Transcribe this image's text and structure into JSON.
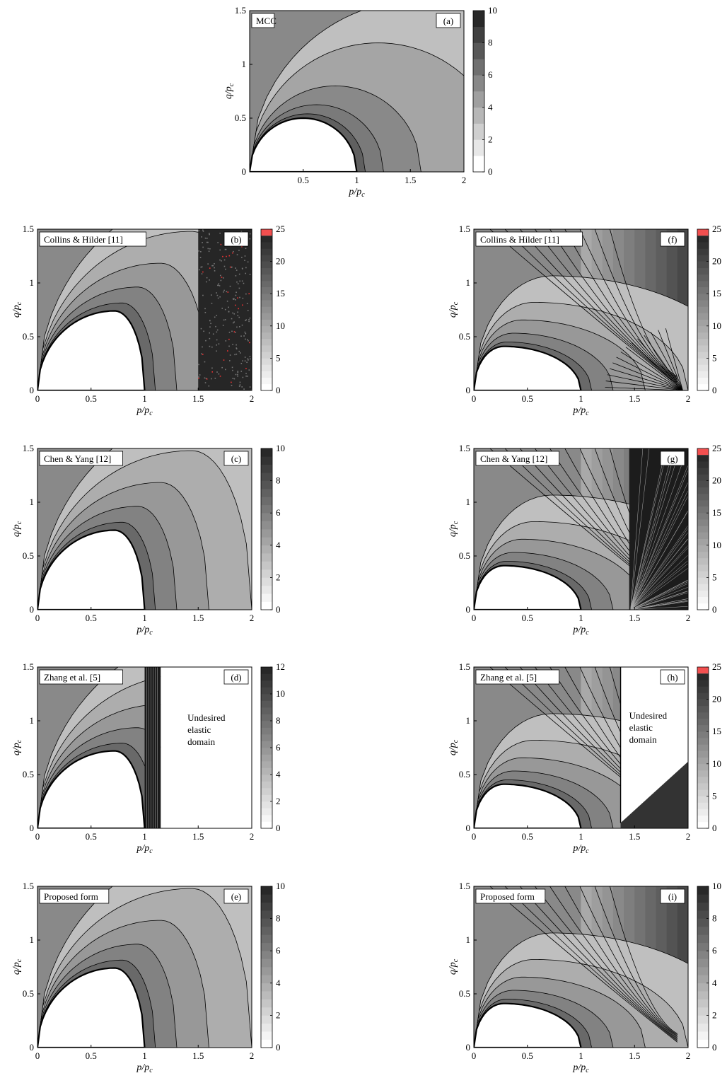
{
  "chart_data": [
    {
      "type": "contour",
      "panel": "(a)",
      "label": "MCC",
      "xlabel": "p/pc",
      "ylabel": "q/pc",
      "xlim": [
        0,
        2
      ],
      "ylim": [
        0,
        1.5
      ],
      "xticks": [
        "0.5",
        "1",
        "1.5",
        "2"
      ],
      "yticks": [
        "0",
        "0.5",
        "1",
        "1.5"
      ],
      "colorbar": {
        "min": 0,
        "max": 10,
        "ticks": [
          "0",
          "2",
          "4",
          "6",
          "8",
          "10"
        ],
        "levels": 10,
        "overflow": false
      },
      "elastic_domain": {
        "center": 0.5,
        "half_width": 0.5,
        "peak": 0.5
      },
      "annotation": ""
    },
    {
      "type": "contour",
      "panel": "(b)",
      "label": "Collins & Hilder [11]",
      "xlabel": "p/pc",
      "ylabel": "q/pc",
      "xlim": [
        0,
        2
      ],
      "ylim": [
        0,
        1.5
      ],
      "xticks": [
        "0",
        "0.5",
        "1",
        "1.5",
        "2"
      ],
      "yticks": [
        "0",
        "0.5",
        "1",
        "1.5"
      ],
      "colorbar": {
        "min": 0,
        "max": 25,
        "ticks": [
          "0",
          "5",
          "10",
          "15",
          "20",
          "25"
        ],
        "levels": 24,
        "overflow": true
      },
      "elastic_domain": {
        "center": 0.5,
        "half_width": 0.5,
        "peak": 0.74
      },
      "annotation": ""
    },
    {
      "type": "contour",
      "panel": "(c)",
      "label": "Chen & Yang [12]",
      "xlabel": "p/pc",
      "ylabel": "q/pc",
      "xlim": [
        0,
        2
      ],
      "ylim": [
        0,
        1.5
      ],
      "xticks": [
        "0",
        "0.5",
        "1",
        "1.5",
        "2"
      ],
      "yticks": [
        "0",
        "0.5",
        "1",
        "1.5"
      ],
      "colorbar": {
        "min": 0,
        "max": 10,
        "ticks": [
          "0",
          "2",
          "4",
          "6",
          "8",
          "10"
        ],
        "levels": 20,
        "overflow": false
      },
      "elastic_domain": {
        "center": 0.5,
        "half_width": 0.5,
        "peak": 0.74
      },
      "annotation": ""
    },
    {
      "type": "contour",
      "panel": "(d)",
      "label": "Zhang et al. [5]",
      "xlabel": "p/pc",
      "ylabel": "q/pc",
      "xlim": [
        0,
        2
      ],
      "ylim": [
        0,
        1.5
      ],
      "xticks": [
        "0",
        "0.5",
        "1",
        "1.5",
        "2"
      ],
      "yticks": [
        "0",
        "0.5",
        "1",
        "1.5"
      ],
      "colorbar": {
        "min": 0,
        "max": 12,
        "ticks": [
          "0",
          "2",
          "4",
          "6",
          "8",
          "10",
          "12"
        ],
        "levels": 24,
        "overflow": false
      },
      "elastic_domain": {
        "center": 0.5,
        "half_width": 0.5,
        "peak": 0.72
      },
      "annotation": "Undesired\nelastic\ndomain"
    },
    {
      "type": "contour",
      "panel": "(e)",
      "label": "Proposed form",
      "xlabel": "p/pc",
      "ylabel": "q/pc",
      "xlim": [
        0,
        2
      ],
      "ylim": [
        0,
        1.5
      ],
      "xticks": [
        "0",
        "0.5",
        "1",
        "1.5",
        "2"
      ],
      "yticks": [
        "0",
        "0.5",
        "1",
        "1.5"
      ],
      "colorbar": {
        "min": 0,
        "max": 10,
        "ticks": [
          "0",
          "2",
          "4",
          "6",
          "8",
          "10"
        ],
        "levels": 20,
        "overflow": false
      },
      "elastic_domain": {
        "center": 0.5,
        "half_width": 0.5,
        "peak": 0.74
      },
      "annotation": ""
    },
    {
      "type": "contour",
      "panel": "(f)",
      "label": "Collins & Hilder [11]",
      "xlabel": "p/pc",
      "ylabel": "q/pc",
      "xlim": [
        0,
        2
      ],
      "ylim": [
        0,
        1.5
      ],
      "xticks": [
        "0",
        "0.5",
        "1",
        "1.5",
        "2"
      ],
      "yticks": [
        "0",
        "0.5",
        "1",
        "1.5"
      ],
      "colorbar": {
        "min": 0,
        "max": 25,
        "ticks": [
          "0",
          "5",
          "10",
          "15",
          "20",
          "25"
        ],
        "levels": 24,
        "overflow": true
      },
      "elastic_domain": {
        "center": 0.5,
        "half_width": 0.5,
        "peak": 0.41
      },
      "annotation": ""
    },
    {
      "type": "contour",
      "panel": "(g)",
      "label": "Chen & Yang [12]",
      "xlabel": "p/pc",
      "ylabel": "q/pc",
      "xlim": [
        0,
        2
      ],
      "ylim": [
        0,
        1.5
      ],
      "xticks": [
        "0",
        "0.5",
        "1",
        "1.5",
        "2"
      ],
      "yticks": [
        "0",
        "0.5",
        "1",
        "1.5"
      ],
      "colorbar": {
        "min": 0,
        "max": 25,
        "ticks": [
          "0",
          "5",
          "10",
          "15",
          "20",
          "25"
        ],
        "levels": 24,
        "overflow": true
      },
      "elastic_domain": {
        "center": 0.5,
        "half_width": 0.5,
        "peak": 0.41
      },
      "annotation": ""
    },
    {
      "type": "contour",
      "panel": "(h)",
      "label": "Zhang et al. [5]",
      "xlabel": "p/pc",
      "ylabel": "q/pc",
      "xlim": [
        0,
        2
      ],
      "ylim": [
        0,
        1.5
      ],
      "xticks": [
        "0",
        "0.5",
        "1",
        "1.5",
        "2"
      ],
      "yticks": [
        "0",
        "0.5",
        "1",
        "1.5"
      ],
      "colorbar": {
        "min": 0,
        "max": 25,
        "ticks": [
          "0",
          "5",
          "10",
          "15",
          "20",
          "25"
        ],
        "levels": 24,
        "overflow": true
      },
      "elastic_domain": {
        "center": 0.5,
        "half_width": 0.5,
        "peak": 0.41
      },
      "annotation": "Undesired\nelastic\ndomain"
    },
    {
      "type": "contour",
      "panel": "(i)",
      "label": "Proposed form",
      "xlabel": "p/pc",
      "ylabel": "q/pc",
      "xlim": [
        0,
        2
      ],
      "ylim": [
        0,
        1.5
      ],
      "xticks": [
        "0",
        "0.5",
        "1",
        "1.5",
        "2"
      ],
      "yticks": [
        "0",
        "0.5",
        "1",
        "1.5"
      ],
      "colorbar": {
        "min": 0,
        "max": 10,
        "ticks": [
          "0",
          "2",
          "4",
          "6",
          "8",
          "10"
        ],
        "levels": 20,
        "overflow": false
      },
      "elastic_domain": {
        "center": 0.5,
        "half_width": 0.5,
        "peak": 0.41
      },
      "annotation": ""
    }
  ]
}
